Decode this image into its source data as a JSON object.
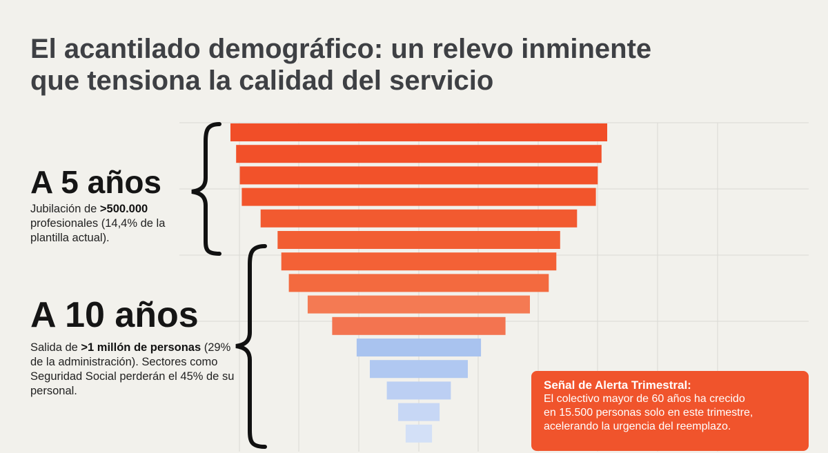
{
  "title_lines": [
    "El acantilado demográfico: un relevo inminente",
    "que tensiona la calidad del servicio"
  ],
  "block_5": {
    "heading": "A 5 años",
    "text_pre": "Jubilación de ",
    "text_bold": ">500.000",
    "text_post": " profesionales (14,4% de la plantilla actual)."
  },
  "block_10": {
    "heading": "A 10 años",
    "text_pre": "Salida de ",
    "text_bold": ">1 millón de personas",
    "text_post": " (29% de la administración). Sectores como Seguridad Social perderán el 45% de su personal."
  },
  "alert": {
    "title": "Señal de Alerta Trimestral:",
    "lines": [
      "El colectivo mayor de 60 años ha crecido",
      "en 15.500 personas solo en este trimestre,",
      "acelerando la urgencia del reemplazo."
    ]
  },
  "chart_data": {
    "type": "bar",
    "orientation": "horizontal-centered",
    "grid": true,
    "values": [
      100,
      97,
      95,
      94,
      84,
      75,
      73,
      69,
      59,
      46,
      33,
      26,
      17,
      11,
      7
    ],
    "colors": [
      "#f14e28",
      "#f25029",
      "#f2522a",
      "#f2552c",
      "#f25a30",
      "#f25e33",
      "#f36136",
      "#f36a3f",
      "#f47a53",
      "#f37450",
      "#a9c3ef",
      "#b0c8f1",
      "#bccff3",
      "#c7d7f5",
      "#d3e0f7"
    ]
  }
}
